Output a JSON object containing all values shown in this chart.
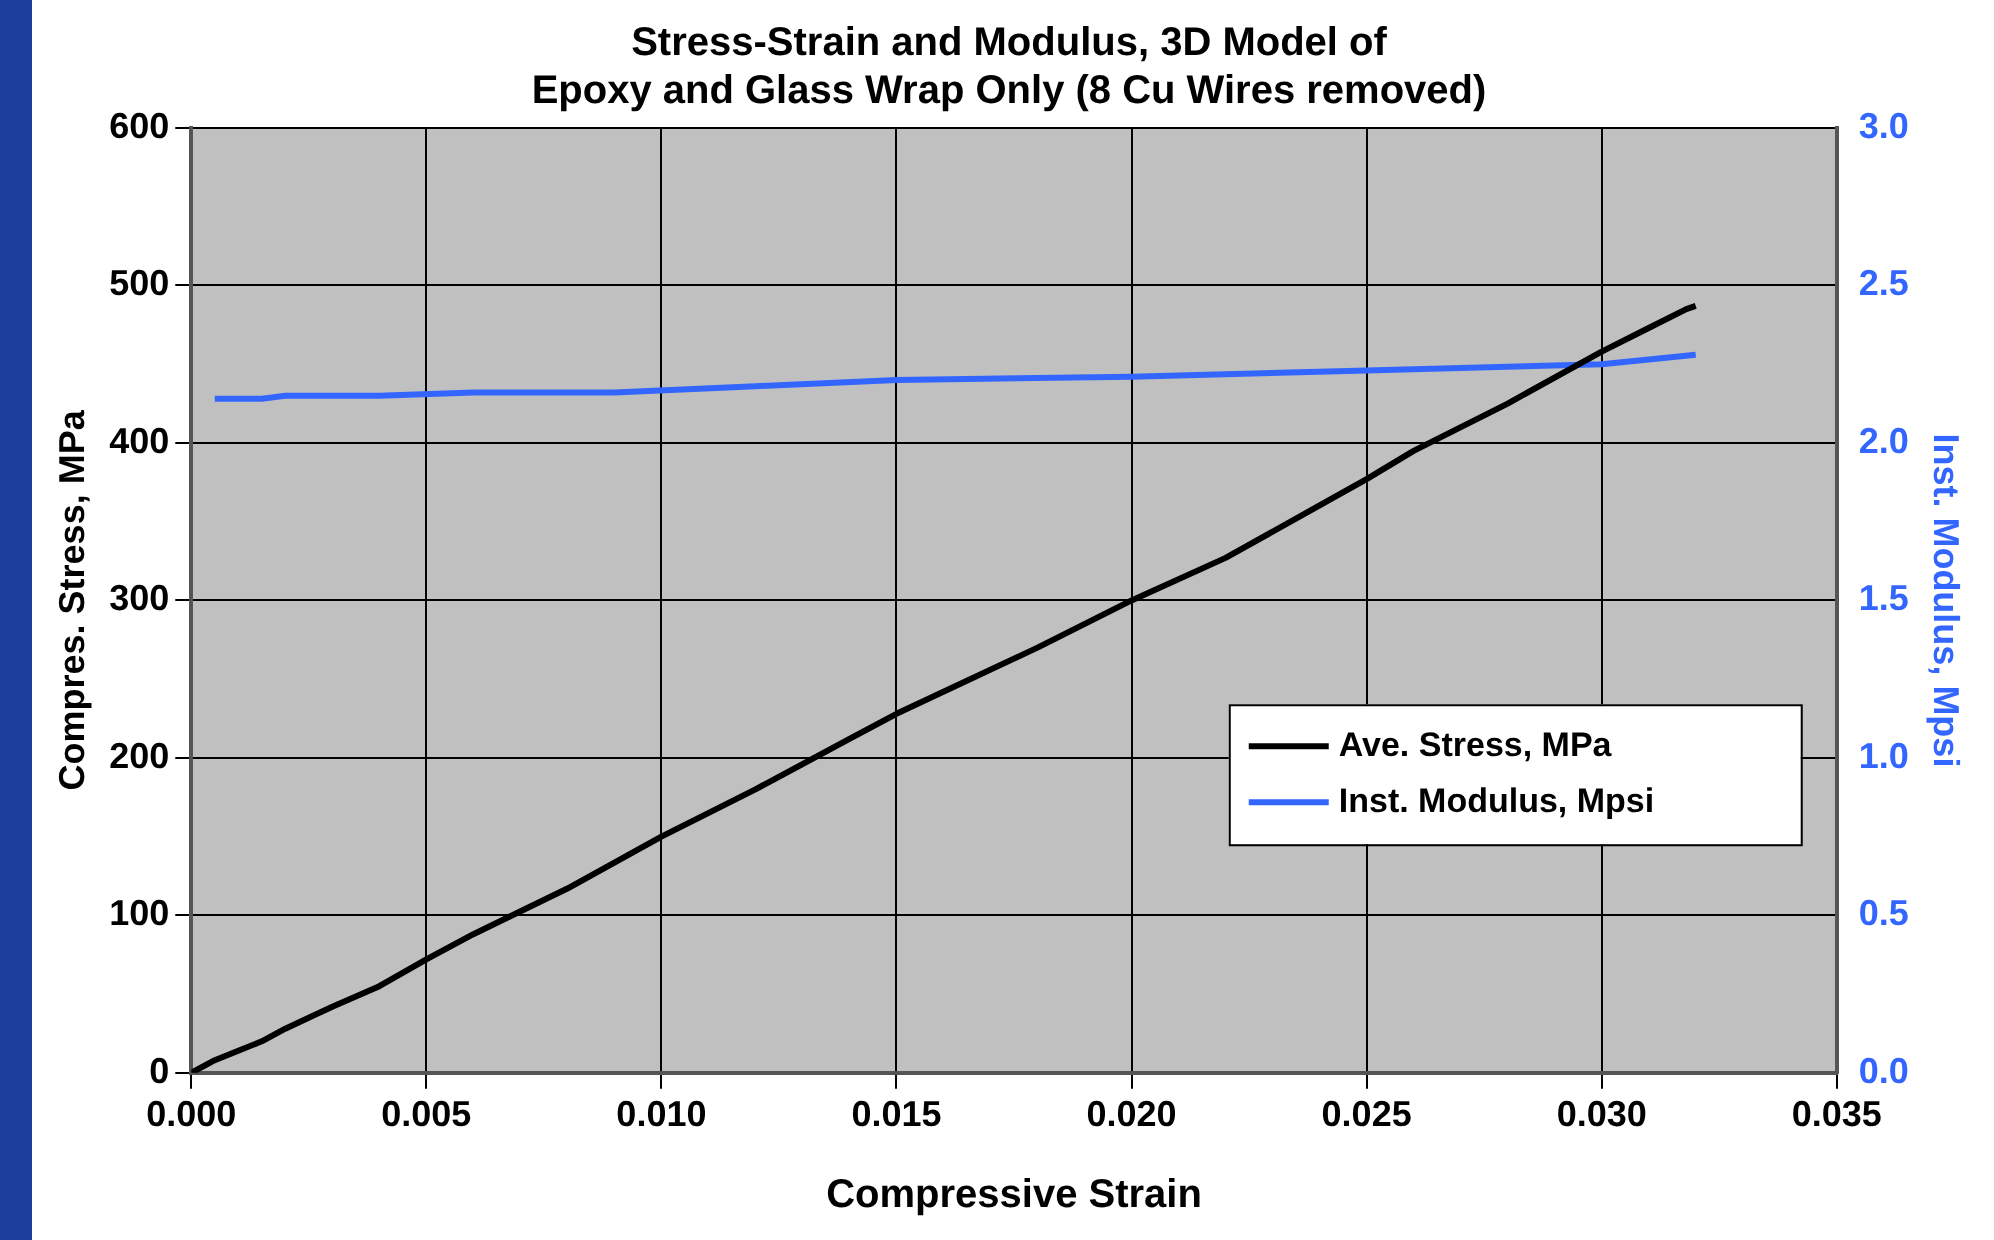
{
  "chart_data": {
    "type": "line",
    "title": [
      "Stress-Strain and Modulus, 3D Model of",
      "Epoxy and Glass Wrap Only (8 Cu Wires removed)"
    ],
    "xlabel": "Compressive Strain",
    "ylabel": "Compres. Stress, MPa",
    "y2label": "Inst. Modulus, Mpsi",
    "xlim": [
      0,
      0.035
    ],
    "xticks": [
      {
        "value": 0,
        "label": "0.000"
      },
      {
        "value": 0.005,
        "label": "0.005"
      },
      {
        "value": 0.01,
        "label": "0.010"
      },
      {
        "value": 0.015,
        "label": "0.015"
      },
      {
        "value": 0.02,
        "label": "0.020"
      },
      {
        "value": 0.025,
        "label": "0.025"
      },
      {
        "value": 0.03,
        "label": "0.030"
      },
      {
        "value": 0.035,
        "label": "0.035"
      }
    ],
    "ylim": [
      0,
      600
    ],
    "yticks": [
      0,
      100,
      200,
      300,
      400,
      500,
      600
    ],
    "y2lim": [
      0,
      3
    ],
    "y2ticks": [
      {
        "value": 0,
        "label": "0.0"
      },
      {
        "value": 0.5,
        "label": "0.5"
      },
      {
        "value": 1,
        "label": "1.0"
      },
      {
        "value": 1.5,
        "label": "1.5"
      },
      {
        "value": 2,
        "label": "2.0"
      },
      {
        "value": 2.5,
        "label": "2.5"
      },
      {
        "value": 3,
        "label": "3.0"
      }
    ],
    "grid": true,
    "legend": "right",
    "marker": "none",
    "line_style": "solid",
    "series": [
      {
        "name": "Ave. Stress, MPa",
        "color": "#000000",
        "x": [
          0,
          0.0005,
          0.001,
          0.0015,
          0.002,
          0.003,
          0.004,
          0.005,
          0.006,
          0.008,
          0.01,
          0.012,
          0.014,
          0.015,
          0.018,
          0.02,
          0.022,
          0.025,
          0.026,
          0.028,
          0.03,
          0.031,
          0.0318,
          0.032
        ],
        "values": [
          0,
          8,
          14,
          20,
          28,
          42,
          55,
          72,
          88,
          117,
          150,
          180,
          212,
          228,
          270,
          300,
          327,
          377,
          395,
          425,
          458,
          473,
          485,
          487
        ]
      },
      {
        "name": "Inst. Modulus, Mpsi",
        "color": "#3366ff",
        "axis": "y2",
        "x": [
          0.0005,
          0.0015,
          0.002,
          0.004,
          0.006,
          0.009,
          0.012,
          0.015,
          0.02,
          0.025,
          0.03,
          0.032
        ],
        "values": [
          2.14,
          2.14,
          2.15,
          2.15,
          2.16,
          2.16,
          2.18,
          2.2,
          2.21,
          2.23,
          2.25,
          2.28
        ]
      }
    ]
  }
}
